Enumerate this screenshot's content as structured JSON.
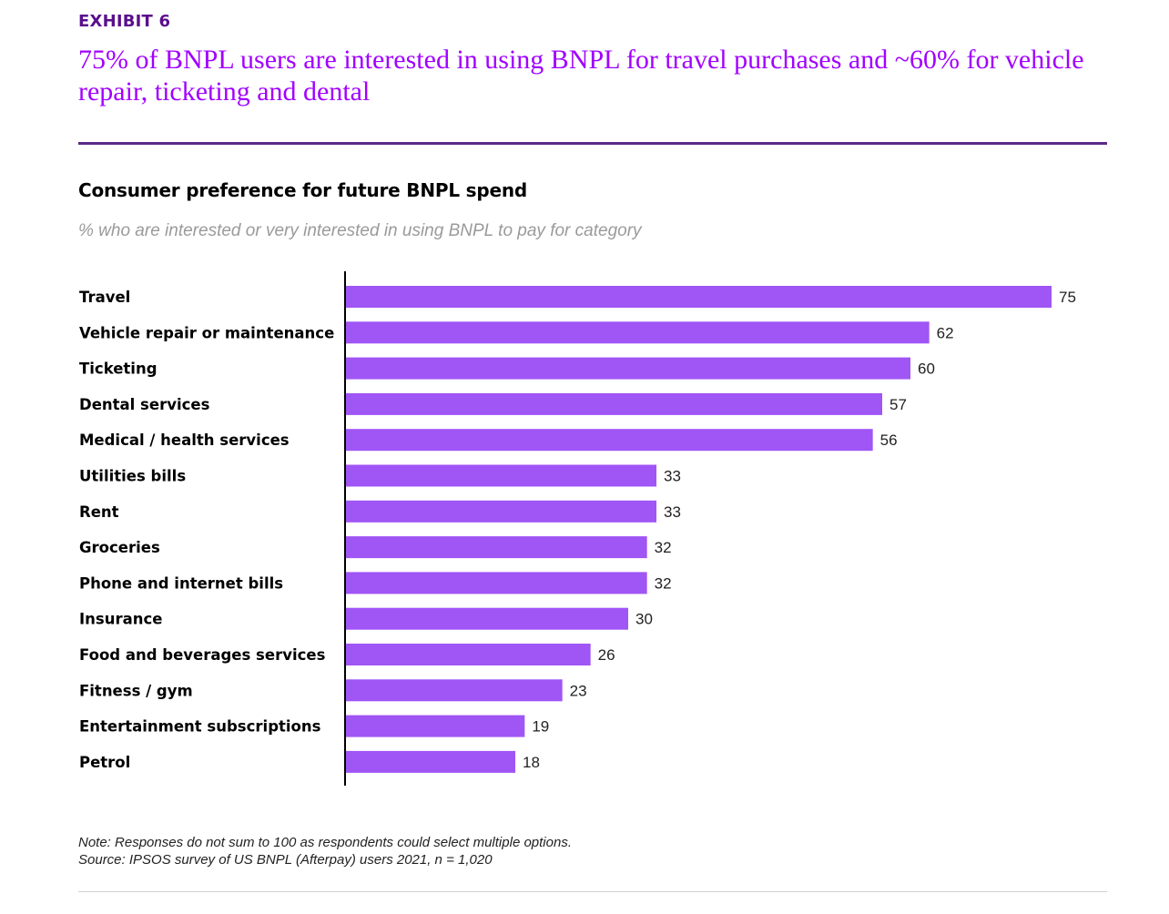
{
  "exhibit_label": "EXHIBIT 6",
  "headline": "75% of BNPL users are interested in using BNPL for travel purchases and ~60% for vehicle repair, ticketing and dental",
  "colors": {
    "exhibit": "#5b0f8c",
    "headline": "#a100ff",
    "bar": "#a055f5",
    "rule": "#5b2a86"
  },
  "chart_data": {
    "type": "bar",
    "orientation": "horizontal",
    "title": "Consumer preference for future BNPL spend",
    "subtitle": "% who are interested or very interested in using BNPL to pay for category",
    "categories": [
      "Travel",
      "Vehicle repair or maintenance",
      "Ticketing",
      "Dental services",
      "Medical / health services",
      "Utilities bills",
      "Rent",
      "Groceries",
      "Phone and internet bills",
      "Insurance",
      "Food and beverages services",
      "Fitness / gym",
      "Entertainment subscriptions",
      "Petrol"
    ],
    "values": [
      75,
      62,
      60,
      57,
      56,
      33,
      33,
      32,
      32,
      30,
      26,
      23,
      19,
      18
    ],
    "xlim": [
      0,
      75
    ],
    "grid": false,
    "legend": "none"
  },
  "note": "Note: Responses do not sum to 100 as respondents could select multiple options.",
  "source": "Source: IPSOS survey of US BNPL (Afterpay) users 2021, n = 1,020"
}
